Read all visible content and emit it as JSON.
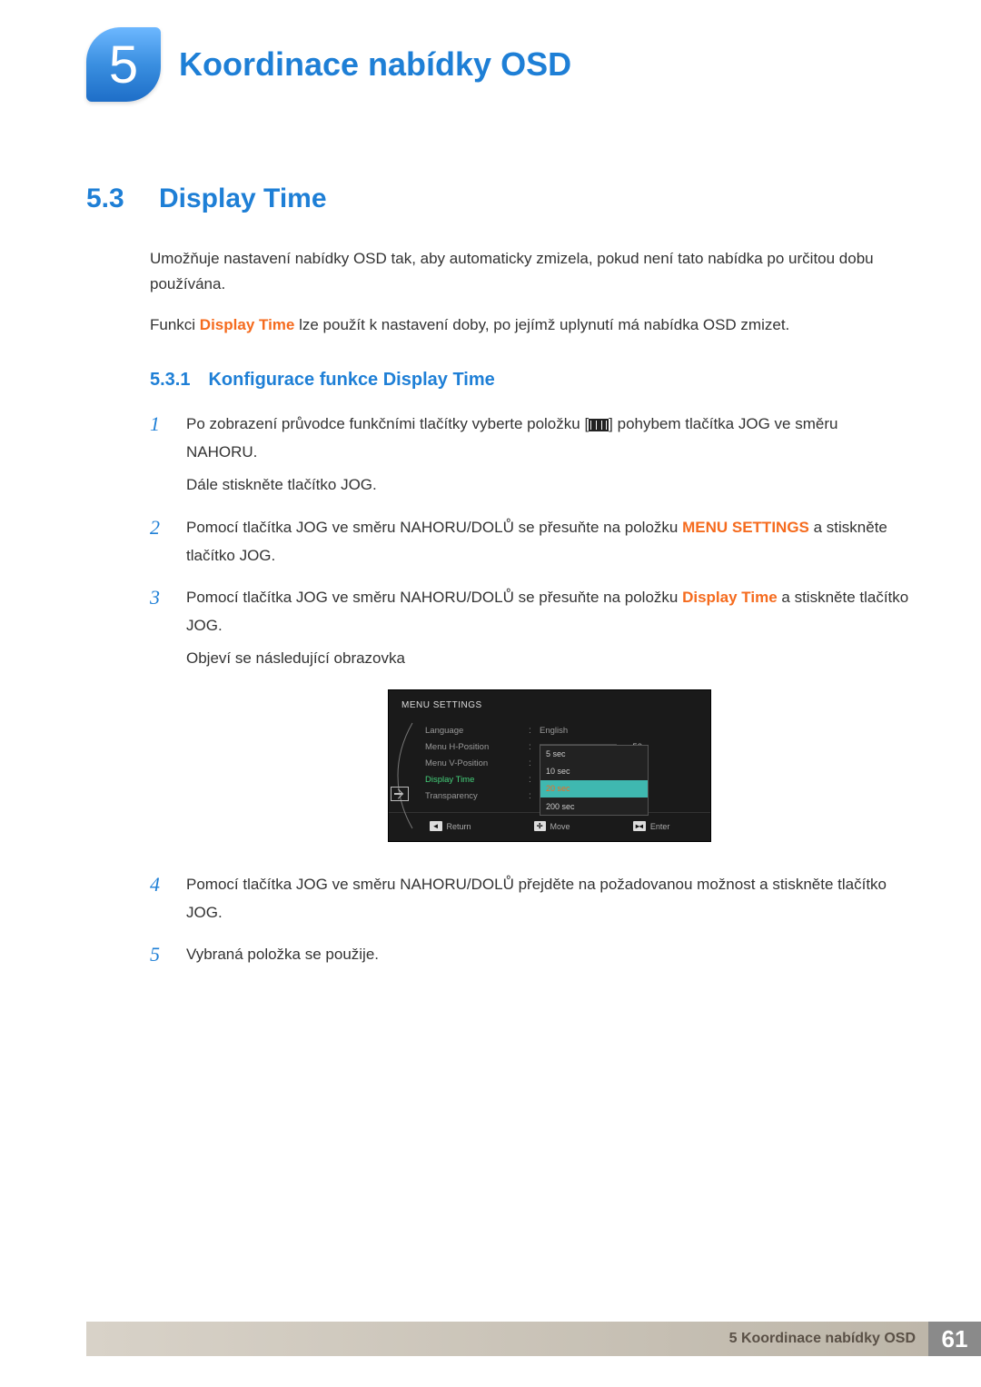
{
  "chapter": {
    "number": "5",
    "title": "Koordinace nabídky OSD"
  },
  "section": {
    "number": "5.3",
    "title": "Display Time",
    "intro1": "Umožňuje nastavení nabídky OSD tak, aby automaticky zmizela, pokud není tato nabídka po určitou dobu používána.",
    "intro2_prefix": "Funkci ",
    "intro2_emph": "Display Time",
    "intro2_suffix": " lze použít k nastavení doby, po jejímž uplynutí má nabídka OSD zmizet."
  },
  "subsection": {
    "number": "5.3.1",
    "title": "Konfigurace funkce Display Time"
  },
  "steps": [
    {
      "num": "1",
      "parts": [
        {
          "type": "text",
          "text": "Po zobrazení průvodce funkčními tlačítky vyberte položku ["
        },
        {
          "type": "icon"
        },
        {
          "type": "text",
          "text": "] pohybem tlačítka JOG ve směru NAHORU."
        }
      ],
      "extra": [
        "Dále stiskněte tlačítko JOG."
      ]
    },
    {
      "num": "2",
      "parts": [
        {
          "type": "text",
          "text": "Pomocí tlačítka JOG ve směru NAHORU/DOLŮ se přesuňte na položku "
        },
        {
          "type": "emph",
          "text": "MENU SETTINGS"
        },
        {
          "type": "text",
          "text": " a stiskněte tlačítko JOG."
        }
      ]
    },
    {
      "num": "3",
      "parts": [
        {
          "type": "text",
          "text": "Pomocí tlačítka JOG ve směru NAHORU/DOLŮ se přesuňte na položku "
        },
        {
          "type": "emph",
          "text": "Display Time"
        },
        {
          "type": "text",
          "text": " a stiskněte tlačítko JOG."
        }
      ],
      "extra": [
        "Objeví se následující obrazovka"
      ]
    },
    {
      "num": "4",
      "parts": [
        {
          "type": "text",
          "text": "Pomocí tlačítka JOG ve směru NAHORU/DOLŮ přejděte na požadovanou možnost a stiskněte tlačítko JOG."
        }
      ]
    },
    {
      "num": "5",
      "parts": [
        {
          "type": "text",
          "text": "Vybraná položka se použije."
        }
      ]
    }
  ],
  "osd": {
    "header": "MENU SETTINGS",
    "rows": {
      "language": {
        "label": "Language",
        "value": "English"
      },
      "menu_h": {
        "label": "Menu H-Position",
        "value": "50"
      },
      "menu_v": {
        "label": "Menu V-Position",
        "value": "10"
      },
      "display_time": {
        "label": "Display Time"
      },
      "transparency": {
        "label": "Transparency"
      }
    },
    "options": [
      "5 sec",
      "10 sec",
      "20 sec",
      "200 sec"
    ],
    "option_highlight_index": 2,
    "option_selected_color_index": 2,
    "footer": {
      "return": "Return",
      "move": "Move",
      "enter": "Enter"
    },
    "colors": {
      "bg": "#1a1a1a",
      "active": "#44d07a",
      "highlight": "#3fb8b0",
      "selected_text": "#f56b1e"
    }
  },
  "footer": {
    "label": "5 Koordinace nabídky OSD",
    "page": "61"
  }
}
